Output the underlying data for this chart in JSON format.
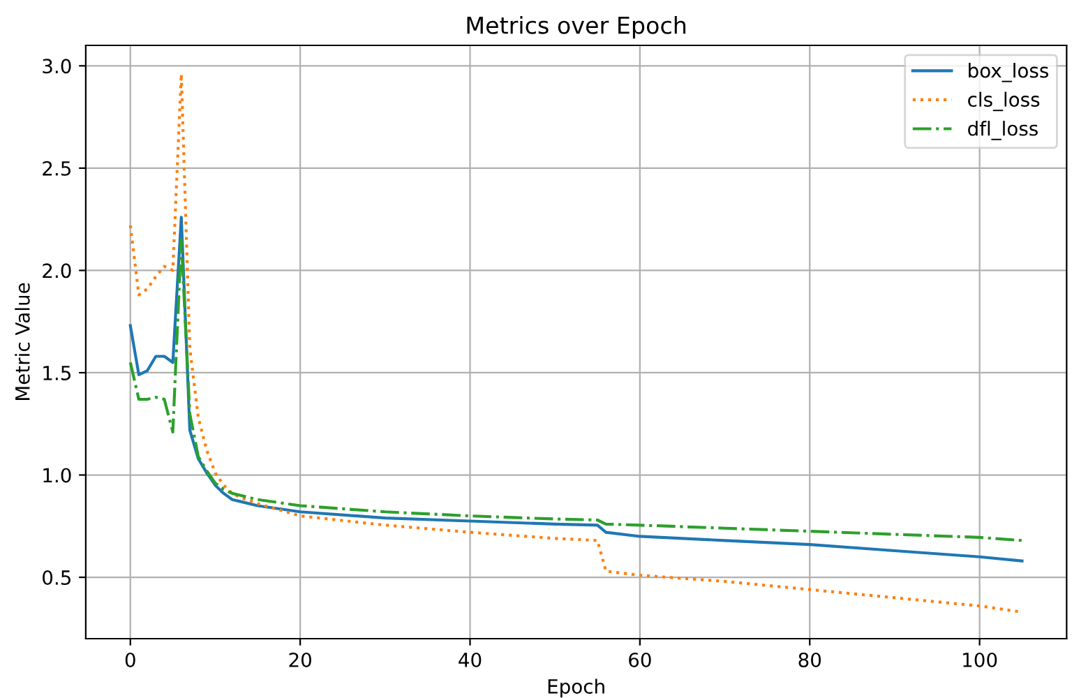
{
  "chart_data": {
    "type": "line",
    "title": "Metrics over Epoch",
    "xlabel": "Epoch",
    "ylabel": "Metric Value",
    "xlim": [
      -5.25,
      110.25
    ],
    "ylim": [
      0.2,
      3.1
    ],
    "xticks": [
      0,
      20,
      40,
      60,
      80,
      100
    ],
    "yticks": [
      {
        "value": 0.5,
        "label": "0.5"
      },
      {
        "value": 1.0,
        "label": "1.0"
      },
      {
        "value": 1.5,
        "label": "1.5"
      },
      {
        "value": 2.0,
        "label": "2.0"
      },
      {
        "value": 2.5,
        "label": "2.5"
      },
      {
        "value": 3.0,
        "label": "3.0"
      }
    ],
    "grid": true,
    "legend": "top right",
    "x": [
      0,
      1,
      2,
      3,
      4,
      5,
      6,
      7,
      8,
      9,
      10,
      11,
      12,
      13,
      15,
      20,
      30,
      40,
      50,
      55,
      56,
      60,
      70,
      80,
      90,
      100,
      105
    ],
    "series": [
      {
        "name": "box_loss",
        "color": "#1f77b4",
        "line_style": "solid",
        "values": [
          1.73,
          1.49,
          1.51,
          1.58,
          1.58,
          1.55,
          2.26,
          1.22,
          1.08,
          1.01,
          0.95,
          0.91,
          0.88,
          0.87,
          0.85,
          0.82,
          0.79,
          0.775,
          0.76,
          0.755,
          0.72,
          0.7,
          0.68,
          0.66,
          0.63,
          0.6,
          0.58
        ]
      },
      {
        "name": "cls_loss",
        "color": "#ff7f0e",
        "line_style": "dotted",
        "values": [
          2.22,
          1.88,
          1.91,
          1.97,
          2.02,
          2.0,
          2.96,
          1.62,
          1.28,
          1.12,
          1.01,
          0.95,
          0.91,
          0.89,
          0.86,
          0.8,
          0.755,
          0.72,
          0.69,
          0.68,
          0.53,
          0.51,
          0.48,
          0.44,
          0.4,
          0.36,
          0.33
        ]
      },
      {
        "name": "dfl_loss",
        "color": "#2ca02c",
        "line_style": "dashdot",
        "values": [
          1.55,
          1.37,
          1.37,
          1.38,
          1.37,
          1.21,
          2.15,
          1.3,
          1.09,
          1.02,
          0.96,
          0.93,
          0.91,
          0.9,
          0.88,
          0.85,
          0.82,
          0.8,
          0.785,
          0.78,
          0.76,
          0.755,
          0.74,
          0.725,
          0.71,
          0.695,
          0.68
        ]
      }
    ]
  }
}
